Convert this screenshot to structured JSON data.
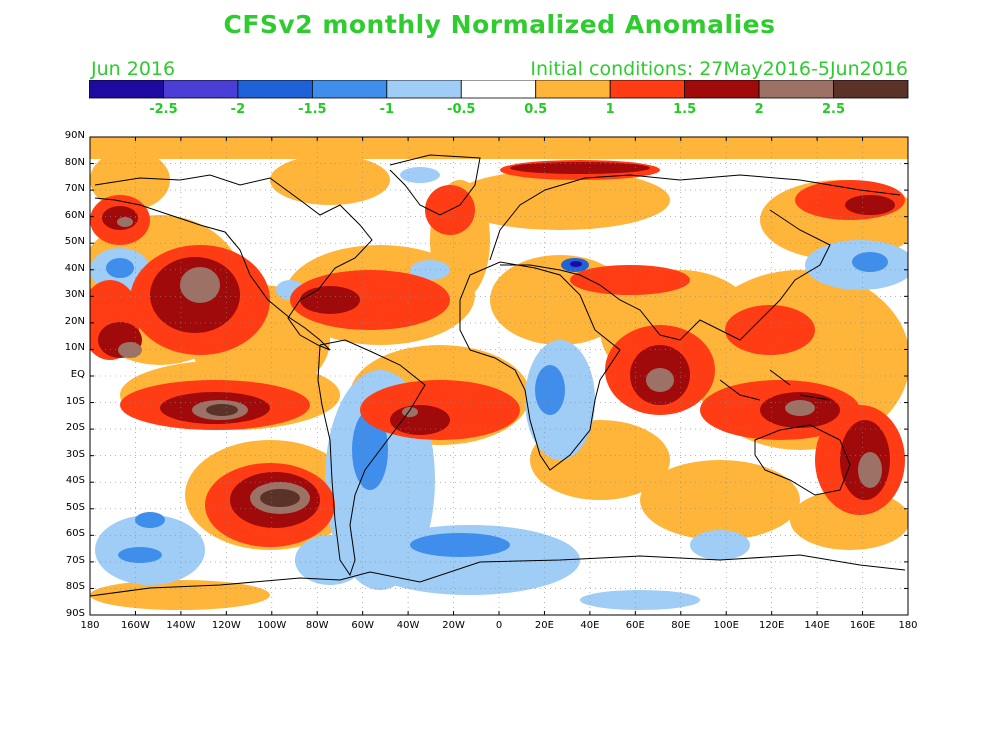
{
  "header": {
    "title": "CFSv2 monthly Normalized Anomalies",
    "month": "Jun 2016",
    "initial_conditions": "Initial conditions: 27May2016-5Jun2016"
  },
  "colorbar": {
    "colors": [
      "#1e0aa0",
      "#4a3ed6",
      "#1f62d8",
      "#3f8eec",
      "#9fcdf6",
      "#ffffff",
      "#ffb43a",
      "#ff3c14",
      "#a00a0a",
      "#9c7266",
      "#5a3228"
    ],
    "labels": [
      "-2.5",
      "-2",
      "-1.5",
      "-1",
      "-0.5",
      "0.5",
      "1",
      "1.5",
      "2",
      "2.5"
    ],
    "label_color": "#22cc22"
  },
  "map": {
    "lat_labels": [
      "90N",
      "80N",
      "70N",
      "60N",
      "50N",
      "40N",
      "30N",
      "20N",
      "10N",
      "EQ",
      "10S",
      "20S",
      "30S",
      "40S",
      "50S",
      "60S",
      "70S",
      "80S",
      "90S"
    ],
    "lon_labels": [
      "180",
      "160W",
      "140W",
      "120W",
      "100W",
      "80W",
      "60W",
      "40W",
      "20W",
      "0",
      "20E",
      "40E",
      "60E",
      "80E",
      "100E",
      "120E",
      "140E",
      "160E",
      "180"
    ]
  }
}
